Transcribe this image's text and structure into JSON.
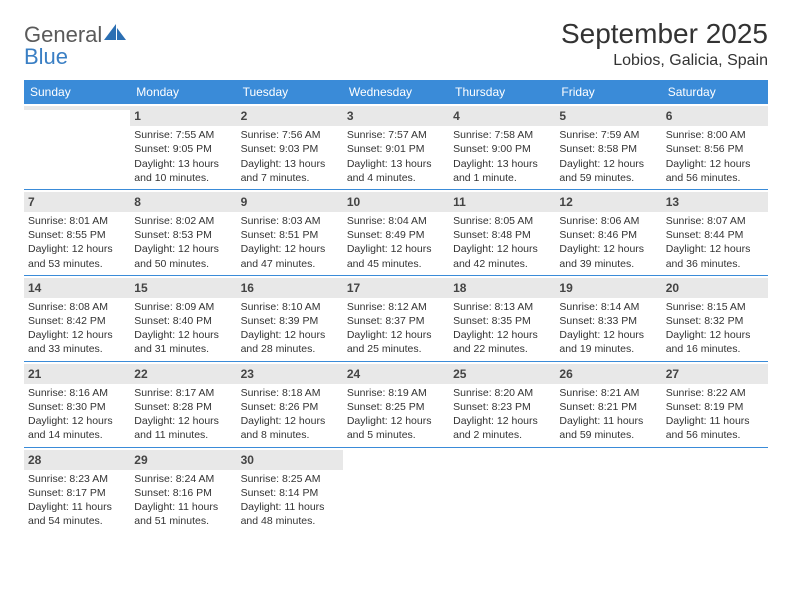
{
  "brand": {
    "line1": "General",
    "line2": "Blue"
  },
  "colors": {
    "header_bg": "#3a8bd8",
    "header_text": "#ffffff",
    "daynum_bg": "#e8e8e8",
    "rule": "#3a8bd8",
    "brand_gray": "#5a5a5a",
    "brand_blue": "#3a7fc4"
  },
  "title": "September 2025",
  "location": "Lobios, Galicia, Spain",
  "dow": [
    "Sunday",
    "Monday",
    "Tuesday",
    "Wednesday",
    "Thursday",
    "Friday",
    "Saturday"
  ],
  "weeks": [
    [
      {
        "n": "",
        "sr": "",
        "ss": "",
        "dl": ""
      },
      {
        "n": "1",
        "sr": "Sunrise: 7:55 AM",
        "ss": "Sunset: 9:05 PM",
        "dl": "Daylight: 13 hours and 10 minutes."
      },
      {
        "n": "2",
        "sr": "Sunrise: 7:56 AM",
        "ss": "Sunset: 9:03 PM",
        "dl": "Daylight: 13 hours and 7 minutes."
      },
      {
        "n": "3",
        "sr": "Sunrise: 7:57 AM",
        "ss": "Sunset: 9:01 PM",
        "dl": "Daylight: 13 hours and 4 minutes."
      },
      {
        "n": "4",
        "sr": "Sunrise: 7:58 AM",
        "ss": "Sunset: 9:00 PM",
        "dl": "Daylight: 13 hours and 1 minute."
      },
      {
        "n": "5",
        "sr": "Sunrise: 7:59 AM",
        "ss": "Sunset: 8:58 PM",
        "dl": "Daylight: 12 hours and 59 minutes."
      },
      {
        "n": "6",
        "sr": "Sunrise: 8:00 AM",
        "ss": "Sunset: 8:56 PM",
        "dl": "Daylight: 12 hours and 56 minutes."
      }
    ],
    [
      {
        "n": "7",
        "sr": "Sunrise: 8:01 AM",
        "ss": "Sunset: 8:55 PM",
        "dl": "Daylight: 12 hours and 53 minutes."
      },
      {
        "n": "8",
        "sr": "Sunrise: 8:02 AM",
        "ss": "Sunset: 8:53 PM",
        "dl": "Daylight: 12 hours and 50 minutes."
      },
      {
        "n": "9",
        "sr": "Sunrise: 8:03 AM",
        "ss": "Sunset: 8:51 PM",
        "dl": "Daylight: 12 hours and 47 minutes."
      },
      {
        "n": "10",
        "sr": "Sunrise: 8:04 AM",
        "ss": "Sunset: 8:49 PM",
        "dl": "Daylight: 12 hours and 45 minutes."
      },
      {
        "n": "11",
        "sr": "Sunrise: 8:05 AM",
        "ss": "Sunset: 8:48 PM",
        "dl": "Daylight: 12 hours and 42 minutes."
      },
      {
        "n": "12",
        "sr": "Sunrise: 8:06 AM",
        "ss": "Sunset: 8:46 PM",
        "dl": "Daylight: 12 hours and 39 minutes."
      },
      {
        "n": "13",
        "sr": "Sunrise: 8:07 AM",
        "ss": "Sunset: 8:44 PM",
        "dl": "Daylight: 12 hours and 36 minutes."
      }
    ],
    [
      {
        "n": "14",
        "sr": "Sunrise: 8:08 AM",
        "ss": "Sunset: 8:42 PM",
        "dl": "Daylight: 12 hours and 33 minutes."
      },
      {
        "n": "15",
        "sr": "Sunrise: 8:09 AM",
        "ss": "Sunset: 8:40 PM",
        "dl": "Daylight: 12 hours and 31 minutes."
      },
      {
        "n": "16",
        "sr": "Sunrise: 8:10 AM",
        "ss": "Sunset: 8:39 PM",
        "dl": "Daylight: 12 hours and 28 minutes."
      },
      {
        "n": "17",
        "sr": "Sunrise: 8:12 AM",
        "ss": "Sunset: 8:37 PM",
        "dl": "Daylight: 12 hours and 25 minutes."
      },
      {
        "n": "18",
        "sr": "Sunrise: 8:13 AM",
        "ss": "Sunset: 8:35 PM",
        "dl": "Daylight: 12 hours and 22 minutes."
      },
      {
        "n": "19",
        "sr": "Sunrise: 8:14 AM",
        "ss": "Sunset: 8:33 PM",
        "dl": "Daylight: 12 hours and 19 minutes."
      },
      {
        "n": "20",
        "sr": "Sunrise: 8:15 AM",
        "ss": "Sunset: 8:32 PM",
        "dl": "Daylight: 12 hours and 16 minutes."
      }
    ],
    [
      {
        "n": "21",
        "sr": "Sunrise: 8:16 AM",
        "ss": "Sunset: 8:30 PM",
        "dl": "Daylight: 12 hours and 14 minutes."
      },
      {
        "n": "22",
        "sr": "Sunrise: 8:17 AM",
        "ss": "Sunset: 8:28 PM",
        "dl": "Daylight: 12 hours and 11 minutes."
      },
      {
        "n": "23",
        "sr": "Sunrise: 8:18 AM",
        "ss": "Sunset: 8:26 PM",
        "dl": "Daylight: 12 hours and 8 minutes."
      },
      {
        "n": "24",
        "sr": "Sunrise: 8:19 AM",
        "ss": "Sunset: 8:25 PM",
        "dl": "Daylight: 12 hours and 5 minutes."
      },
      {
        "n": "25",
        "sr": "Sunrise: 8:20 AM",
        "ss": "Sunset: 8:23 PM",
        "dl": "Daylight: 12 hours and 2 minutes."
      },
      {
        "n": "26",
        "sr": "Sunrise: 8:21 AM",
        "ss": "Sunset: 8:21 PM",
        "dl": "Daylight: 11 hours and 59 minutes."
      },
      {
        "n": "27",
        "sr": "Sunrise: 8:22 AM",
        "ss": "Sunset: 8:19 PM",
        "dl": "Daylight: 11 hours and 56 minutes."
      }
    ],
    [
      {
        "n": "28",
        "sr": "Sunrise: 8:23 AM",
        "ss": "Sunset: 8:17 PM",
        "dl": "Daylight: 11 hours and 54 minutes."
      },
      {
        "n": "29",
        "sr": "Sunrise: 8:24 AM",
        "ss": "Sunset: 8:16 PM",
        "dl": "Daylight: 11 hours and 51 minutes."
      },
      {
        "n": "30",
        "sr": "Sunrise: 8:25 AM",
        "ss": "Sunset: 8:14 PM",
        "dl": "Daylight: 11 hours and 48 minutes."
      },
      {
        "n": "",
        "sr": "",
        "ss": "",
        "dl": ""
      },
      {
        "n": "",
        "sr": "",
        "ss": "",
        "dl": ""
      },
      {
        "n": "",
        "sr": "",
        "ss": "",
        "dl": ""
      },
      {
        "n": "",
        "sr": "",
        "ss": "",
        "dl": ""
      }
    ]
  ]
}
